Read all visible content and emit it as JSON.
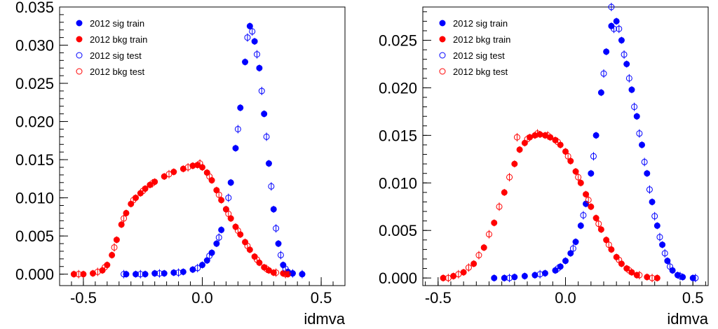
{
  "colors": {
    "sig": "#0000ff",
    "bkg": "#ff0000",
    "frame": "#000000"
  },
  "chart_data": [
    {
      "type": "scatter",
      "xlabel": "idmva",
      "xlim": [
        -0.6,
        0.6
      ],
      "ylim": [
        -0.0015,
        0.035
      ],
      "x_ticks": [
        -0.5,
        0.0,
        0.5
      ],
      "x_tick_labels": [
        "-0.5",
        "0.0",
        "0.5"
      ],
      "y_ticks": [
        0.0,
        0.005,
        0.01,
        0.015,
        0.02,
        0.025,
        0.03,
        0.035
      ],
      "y_tick_labels": [
        "0.000",
        "0.005",
        "0.010",
        "0.015",
        "0.020",
        "0.025",
        "0.030",
        "0.035"
      ],
      "legend": {
        "placement": "top-left",
        "entries": [
          "2012 sig train",
          "2012 bkg train",
          "2012 sig test",
          "2012 bkg test"
        ]
      },
      "series": [
        {
          "name": "2012 sig train",
          "group": "sig",
          "filled": true,
          "points": [
            [
              -0.32,
              0.0
            ],
            [
              -0.28,
              0.0
            ],
            [
              -0.24,
              0.0
            ],
            [
              -0.2,
              0.0001
            ],
            [
              -0.16,
              0.0001
            ],
            [
              -0.12,
              0.0002
            ],
            [
              -0.08,
              0.0003
            ],
            [
              -0.04,
              0.0006
            ],
            [
              0.0,
              0.0012
            ],
            [
              0.02,
              0.0018
            ],
            [
              0.04,
              0.0028
            ],
            [
              0.06,
              0.004
            ],
            [
              0.08,
              0.0058
            ],
            [
              0.1,
              0.0085
            ],
            [
              0.12,
              0.012
            ],
            [
              0.14,
              0.0165
            ],
            [
              0.16,
              0.0218
            ],
            [
              0.18,
              0.0278
            ],
            [
              0.2,
              0.0325
            ],
            [
              0.22,
              0.0305
            ],
            [
              0.24,
              0.027
            ],
            [
              0.26,
              0.021
            ],
            [
              0.28,
              0.0145
            ],
            [
              0.3,
              0.0085
            ],
            [
              0.32,
              0.004
            ],
            [
              0.34,
              0.0012
            ],
            [
              0.36,
              0.0003
            ],
            [
              0.38,
              0.0001
            ],
            [
              0.42,
              0.0
            ]
          ]
        },
        {
          "name": "2012 bkg train",
          "group": "bkg",
          "filled": true,
          "points": [
            [
              -0.54,
              0.0
            ],
            [
              -0.5,
              0.0
            ],
            [
              -0.46,
              0.0001
            ],
            [
              -0.42,
              0.0005
            ],
            [
              -0.4,
              0.0012
            ],
            [
              -0.38,
              0.0025
            ],
            [
              -0.36,
              0.0045
            ],
            [
              -0.34,
              0.0065
            ],
            [
              -0.32,
              0.008
            ],
            [
              -0.3,
              0.0092
            ],
            [
              -0.28,
              0.01
            ],
            [
              -0.26,
              0.0106
            ],
            [
              -0.24,
              0.0112
            ],
            [
              -0.22,
              0.0117
            ],
            [
              -0.2,
              0.0121
            ],
            [
              -0.16,
              0.0128
            ],
            [
              -0.12,
              0.0134
            ],
            [
              -0.08,
              0.0138
            ],
            [
              -0.04,
              0.0142
            ],
            [
              -0.02,
              0.0143
            ],
            [
              0.0,
              0.014
            ],
            [
              0.02,
              0.0133
            ],
            [
              0.04,
              0.0123
            ],
            [
              0.06,
              0.011
            ],
            [
              0.08,
              0.0097
            ],
            [
              0.1,
              0.0085
            ],
            [
              0.12,
              0.0073
            ],
            [
              0.14,
              0.0062
            ],
            [
              0.16,
              0.0052
            ],
            [
              0.18,
              0.0042
            ],
            [
              0.2,
              0.0032
            ],
            [
              0.22,
              0.0023
            ],
            [
              0.24,
              0.0015
            ],
            [
              0.26,
              0.0009
            ],
            [
              0.28,
              0.0005
            ],
            [
              0.3,
              0.0002
            ],
            [
              0.34,
              0.0001
            ],
            [
              0.36,
              0.0
            ]
          ]
        },
        {
          "name": "2012 sig test",
          "group": "sig",
          "filled": false,
          "points": [
            [
              -0.33,
              0.0
            ],
            [
              -0.26,
              0.0
            ],
            [
              -0.18,
              0.0001
            ],
            [
              -0.1,
              0.0002
            ],
            [
              -0.02,
              0.0008
            ],
            [
              0.03,
              0.0024
            ],
            [
              0.07,
              0.0048
            ],
            [
              0.11,
              0.01
            ],
            [
              0.15,
              0.019
            ],
            [
              0.19,
              0.031
            ],
            [
              0.21,
              0.0318
            ],
            [
              0.23,
              0.0288
            ],
            [
              0.25,
              0.024
            ],
            [
              0.27,
              0.018
            ],
            [
              0.29,
              0.0115
            ],
            [
              0.31,
              0.006
            ],
            [
              0.33,
              0.0025
            ],
            [
              0.35,
              0.0007
            ],
            [
              0.38,
              0.0001
            ],
            [
              0.42,
              0.0
            ]
          ]
        },
        {
          "name": "2012 bkg test",
          "group": "bkg",
          "filled": false,
          "points": [
            [
              -0.52,
              0.0
            ],
            [
              -0.44,
              0.0003
            ],
            [
              -0.41,
              0.0009
            ],
            [
              -0.37,
              0.0035
            ],
            [
              -0.33,
              0.0073
            ],
            [
              -0.29,
              0.0097
            ],
            [
              -0.25,
              0.0109
            ],
            [
              -0.21,
              0.0119
            ],
            [
              -0.14,
              0.0131
            ],
            [
              -0.06,
              0.014
            ],
            [
              -0.01,
              0.0145
            ],
            [
              0.03,
              0.0128
            ],
            [
              0.07,
              0.0104
            ],
            [
              0.11,
              0.0079
            ],
            [
              0.15,
              0.0057
            ],
            [
              0.19,
              0.0037
            ],
            [
              0.23,
              0.0019
            ],
            [
              0.27,
              0.0007
            ],
            [
              0.31,
              0.0002
            ],
            [
              0.35,
              0.0
            ]
          ]
        }
      ]
    },
    {
      "type": "scatter",
      "xlabel": "idmva",
      "xlim": [
        -0.56,
        0.56
      ],
      "ylim": [
        -0.0008,
        0.0285
      ],
      "x_ticks": [
        -0.5,
        0.0,
        0.5
      ],
      "x_tick_labels": [
        "-0.5",
        "0.0",
        "0.5"
      ],
      "y_ticks": [
        0.0,
        0.005,
        0.01,
        0.015,
        0.02,
        0.025
      ],
      "y_tick_labels": [
        "0.000",
        "0.005",
        "0.010",
        "0.015",
        "0.020",
        "0.025"
      ],
      "legend": {
        "placement": "top-left",
        "entries": [
          "2012 sig train",
          "2012 bkg train",
          "2012 sig test",
          "2012 bkg test"
        ]
      },
      "series": [
        {
          "name": "2012 sig train",
          "group": "sig",
          "filled": true,
          "points": [
            [
              -0.28,
              0.0
            ],
            [
              -0.24,
              0.0
            ],
            [
              -0.2,
              0.0001
            ],
            [
              -0.16,
              0.0002
            ],
            [
              -0.12,
              0.0003
            ],
            [
              -0.08,
              0.0005
            ],
            [
              -0.04,
              0.0008
            ],
            [
              -0.02,
              0.0012
            ],
            [
              0.0,
              0.0018
            ],
            [
              0.02,
              0.0026
            ],
            [
              0.04,
              0.0038
            ],
            [
              0.06,
              0.0055
            ],
            [
              0.08,
              0.0078
            ],
            [
              0.1,
              0.011
            ],
            [
              0.12,
              0.015
            ],
            [
              0.14,
              0.0195
            ],
            [
              0.16,
              0.0238
            ],
            [
              0.18,
              0.0265
            ],
            [
              0.2,
              0.027
            ],
            [
              0.22,
              0.025
            ],
            [
              0.24,
              0.0225
            ],
            [
              0.26,
              0.0198
            ],
            [
              0.28,
              0.017
            ],
            [
              0.3,
              0.014
            ],
            [
              0.32,
              0.011
            ],
            [
              0.34,
              0.008
            ],
            [
              0.36,
              0.0055
            ],
            [
              0.38,
              0.0035
            ],
            [
              0.4,
              0.0018
            ],
            [
              0.42,
              0.0008
            ],
            [
              0.44,
              0.0003
            ],
            [
              0.46,
              0.0001
            ],
            [
              0.5,
              0.0
            ]
          ]
        },
        {
          "name": "2012 bkg train",
          "group": "bkg",
          "filled": true,
          "points": [
            [
              -0.48,
              0.0
            ],
            [
              -0.44,
              0.0002
            ],
            [
              -0.4,
              0.0006
            ],
            [
              -0.36,
              0.0015
            ],
            [
              -0.32,
              0.0032
            ],
            [
              -0.28,
              0.0058
            ],
            [
              -0.24,
              0.009
            ],
            [
              -0.2,
              0.012
            ],
            [
              -0.18,
              0.0135
            ],
            [
              -0.16,
              0.0142
            ],
            [
              -0.14,
              0.0148
            ],
            [
              -0.12,
              0.015
            ],
            [
              -0.1,
              0.0151
            ],
            [
              -0.08,
              0.015
            ],
            [
              -0.06,
              0.0148
            ],
            [
              -0.04,
              0.0145
            ],
            [
              -0.02,
              0.014
            ],
            [
              0.0,
              0.0133
            ],
            [
              0.02,
              0.0123
            ],
            [
              0.04,
              0.0112
            ],
            [
              0.06,
              0.01
            ],
            [
              0.08,
              0.0088
            ],
            [
              0.1,
              0.0075
            ],
            [
              0.12,
              0.0063
            ],
            [
              0.14,
              0.0051
            ],
            [
              0.16,
              0.004
            ],
            [
              0.18,
              0.003
            ],
            [
              0.2,
              0.0022
            ],
            [
              0.22,
              0.0015
            ],
            [
              0.24,
              0.001
            ],
            [
              0.26,
              0.0006
            ],
            [
              0.28,
              0.0003
            ],
            [
              0.32,
              0.0001
            ],
            [
              0.36,
              0.0
            ]
          ]
        },
        {
          "name": "2012 sig test",
          "group": "sig",
          "filled": false,
          "points": [
            [
              -0.22,
              0.0
            ],
            [
              -0.1,
              0.0004
            ],
            [
              -0.03,
              0.001
            ],
            [
              0.03,
              0.0031
            ],
            [
              0.07,
              0.0066
            ],
            [
              0.11,
              0.0128
            ],
            [
              0.15,
              0.0215
            ],
            [
              0.18,
              0.0285
            ],
            [
              0.19,
              0.0262
            ],
            [
              0.21,
              0.0262
            ],
            [
              0.23,
              0.0235
            ],
            [
              0.25,
              0.021
            ],
            [
              0.27,
              0.018
            ],
            [
              0.29,
              0.0152
            ],
            [
              0.31,
              0.0122
            ],
            [
              0.33,
              0.0093
            ],
            [
              0.35,
              0.0065
            ],
            [
              0.37,
              0.0043
            ],
            [
              0.39,
              0.0026
            ],
            [
              0.41,
              0.0012
            ],
            [
              0.45,
              0.0002
            ],
            [
              0.51,
              0.0
            ]
          ]
        },
        {
          "name": "2012 bkg test",
          "group": "bkg",
          "filled": false,
          "points": [
            [
              -0.46,
              0.0
            ],
            [
              -0.42,
              0.0004
            ],
            [
              -0.38,
              0.0011
            ],
            [
              -0.34,
              0.0024
            ],
            [
              -0.3,
              0.0046
            ],
            [
              -0.26,
              0.0075
            ],
            [
              -0.22,
              0.0106
            ],
            [
              -0.19,
              0.0148
            ],
            [
              -0.15,
              0.0146
            ],
            [
              -0.11,
              0.0152
            ],
            [
              -0.07,
              0.015
            ],
            [
              -0.03,
              0.0143
            ],
            [
              0.01,
              0.0128
            ],
            [
              0.05,
              0.0106
            ],
            [
              0.09,
              0.0082
            ],
            [
              0.13,
              0.0057
            ],
            [
              0.17,
              0.0035
            ],
            [
              0.21,
              0.0019
            ],
            [
              0.25,
              0.0008
            ],
            [
              0.29,
              0.0003
            ],
            [
              0.34,
              0.0
            ]
          ]
        }
      ]
    }
  ]
}
